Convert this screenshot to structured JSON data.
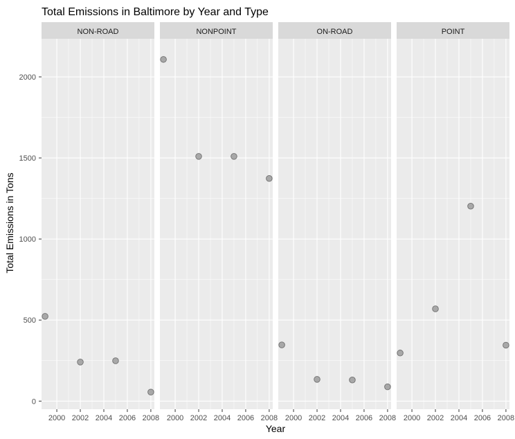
{
  "chart_data": {
    "type": "scatter",
    "title": "Total Emissions in Baltimore by Year and Type",
    "xlabel": "Year",
    "ylabel": "Total Emissions in Tons",
    "xlim": [
      1998.7,
      2008.3
    ],
    "ylim": [
      -50,
      2235
    ],
    "x_ticks": [
      2000,
      2002,
      2004,
      2006,
      2008
    ],
    "y_ticks": [
      0,
      500,
      1000,
      1500,
      2000
    ],
    "grid": true,
    "legend": "none",
    "colors": {
      "panel_bg": "#ebebeb",
      "strip_bg": "#d9d9d9",
      "grid_major": "#ffffff",
      "point_fill": "#a8a8a8",
      "point_stroke": "#6e6e6e",
      "axis_text": "#4d4d4d",
      "title_text": "#000000"
    },
    "facets": [
      {
        "label": "NON-ROAD",
        "x": [
          1999,
          2002,
          2005,
          2008
        ],
        "y": [
          522.94,
          240.85,
          248.93,
          55.82
        ]
      },
      {
        "label": "NONPOINT",
        "x": [
          1999,
          2002,
          2005,
          2008
        ],
        "y": [
          2107.63,
          1509.5,
          1509.5,
          1373.21
        ]
      },
      {
        "label": "ON-ROAD",
        "x": [
          1999,
          2002,
          2005,
          2008
        ],
        "y": [
          346.82,
          134.31,
          130.43,
          88.28
        ]
      },
      {
        "label": "POINT",
        "x": [
          1999,
          2002,
          2005,
          2008
        ],
        "y": [
          296.8,
          569.26,
          1202.49,
          344.98
        ]
      }
    ]
  }
}
